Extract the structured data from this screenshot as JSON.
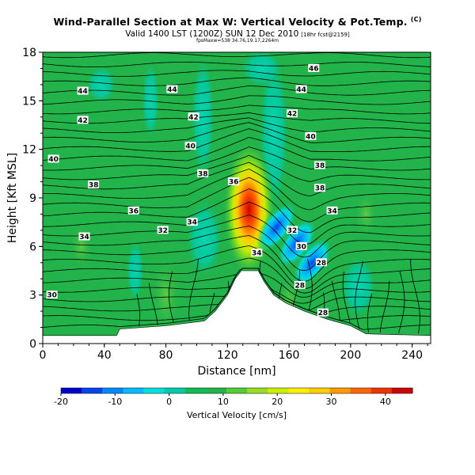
{
  "header": {
    "title": "Wind-Parallel Section at Max W: Vertical Velocity & Pot.Temp.",
    "title_tag": "(C)",
    "subtitle": "Valid 1400 LST (1200Z) SUN 12 Dec 2010",
    "subtitle_tag": "[18hr fcst@2159]",
    "subtitle2": "fpsMaxw=538 34.76,19.17,2264m"
  },
  "colors": {
    "terrain": "#ffffff",
    "contour": "#000000",
    "background_field": "#22b34a"
  },
  "chart_data": {
    "type": "heatmap",
    "title": "Wind-Parallel Section at Max W: Vertical Velocity & Pot.Temp.",
    "xlabel": "Distance [nm]",
    "ylabel": "Height [Kft MSL]",
    "xlim": [
      0,
      252
    ],
    "ylim": [
      0,
      18
    ],
    "x_ticks": [
      0,
      40,
      80,
      120,
      160,
      200,
      240
    ],
    "y_ticks": [
      0,
      3,
      6,
      9,
      12,
      15,
      18
    ],
    "grid": false,
    "colorbar": {
      "label": "Vertical Velocity [cm/s]",
      "min": -20,
      "max": 45,
      "ticks": [
        -20,
        -10,
        0,
        10,
        20,
        30,
        40
      ],
      "placement": "bottom",
      "colors": [
        "#0000cc",
        "#0044ee",
        "#0088ff",
        "#00bbff",
        "#00dddd",
        "#00ccaa",
        "#11bb55",
        "#22b34a",
        "#55cc33",
        "#99dd22",
        "#ccee00",
        "#ffee00",
        "#ffcc00",
        "#ff9900",
        "#ff6600",
        "#ee3300",
        "#cc0000"
      ]
    },
    "terrain": [
      {
        "x": 0,
        "h": 0.5
      },
      {
        "x": 48,
        "h": 0.5
      },
      {
        "x": 50,
        "h": 0.9
      },
      {
        "x": 80,
        "h": 1.1
      },
      {
        "x": 105,
        "h": 1.4
      },
      {
        "x": 112,
        "h": 2.0
      },
      {
        "x": 120,
        "h": 3.0
      },
      {
        "x": 125,
        "h": 4.0
      },
      {
        "x": 129,
        "h": 4.5
      },
      {
        "x": 140,
        "h": 4.5
      },
      {
        "x": 144,
        "h": 3.8
      },
      {
        "x": 150,
        "h": 3.0
      },
      {
        "x": 158,
        "h": 2.5
      },
      {
        "x": 170,
        "h": 2.0
      },
      {
        "x": 185,
        "h": 1.5
      },
      {
        "x": 200,
        "h": 1.1
      },
      {
        "x": 210,
        "h": 0.6
      },
      {
        "x": 252,
        "h": 0.5
      }
    ],
    "theta_contour_labels": [
      {
        "text": "46",
        "x": 176,
        "y": 17.0
      },
      {
        "text": "44",
        "x": 26,
        "y": 15.6
      },
      {
        "text": "44",
        "x": 84,
        "y": 15.7
      },
      {
        "text": "44",
        "x": 168,
        "y": 15.7
      },
      {
        "text": "42",
        "x": 26,
        "y": 13.8
      },
      {
        "text": "42",
        "x": 98,
        "y": 14.0
      },
      {
        "text": "42",
        "x": 162,
        "y": 14.2
      },
      {
        "text": "40",
        "x": 7,
        "y": 11.4
      },
      {
        "text": "40",
        "x": 96,
        "y": 12.2
      },
      {
        "text": "40",
        "x": 174,
        "y": 12.8
      },
      {
        "text": "38",
        "x": 33,
        "y": 9.8
      },
      {
        "text": "38",
        "x": 104,
        "y": 10.5
      },
      {
        "text": "38",
        "x": 180,
        "y": 11.0
      },
      {
        "text": "38",
        "x": 180,
        "y": 9.6
      },
      {
        "text": "36",
        "x": 59,
        "y": 8.2
      },
      {
        "text": "36",
        "x": 124,
        "y": 10.0
      },
      {
        "text": "34",
        "x": 27,
        "y": 6.6
      },
      {
        "text": "34",
        "x": 97,
        "y": 7.5
      },
      {
        "text": "34",
        "x": 188,
        "y": 8.2
      },
      {
        "text": "34",
        "x": 139,
        "y": 5.6
      },
      {
        "text": "32",
        "x": 78,
        "y": 7.0
      },
      {
        "text": "32",
        "x": 162,
        "y": 7.0
      },
      {
        "text": "30",
        "x": 6,
        "y": 3.0
      },
      {
        "text": "30",
        "x": 168,
        "y": 6.0
      },
      {
        "text": "28",
        "x": 181,
        "y": 5.0
      },
      {
        "text": "28",
        "x": 167,
        "y": 3.6
      },
      {
        "text": "28",
        "x": 182,
        "y": 1.9
      }
    ],
    "w_maxima": [
      {
        "x": 134,
        "y": 8.3,
        "w": 42
      },
      {
        "x": 152,
        "y": 7.2,
        "w": -14
      },
      {
        "x": 165,
        "y": 6.2,
        "w": -18
      },
      {
        "x": 175,
        "y": 5.0,
        "w": -10
      }
    ]
  },
  "colorbar_label": "Vertical Velocity [cm/s]"
}
